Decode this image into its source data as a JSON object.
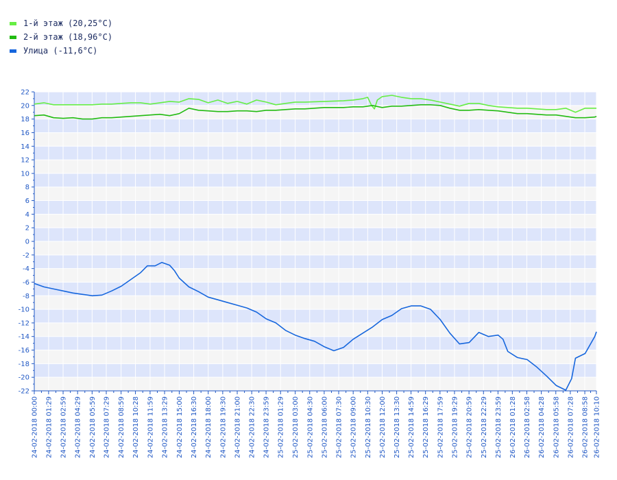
{
  "chart_data": {
    "type": "line",
    "ylim": [
      -22,
      22
    ],
    "yticks": [
      22,
      20,
      18,
      16,
      14,
      12,
      10,
      8,
      6,
      4,
      2,
      0,
      -2,
      -4,
      -6,
      -8,
      -10,
      -12,
      -14,
      -16,
      -18,
      -20,
      -22
    ],
    "xlim": [
      0,
      58.17
    ],
    "xticks": [
      {
        "h": 0,
        "label": "24-02-2018 00:00"
      },
      {
        "h": 1.483,
        "label": "24-02-2018 01:29"
      },
      {
        "h": 2.983,
        "label": "24-02-2018 02:59"
      },
      {
        "h": 4.483,
        "label": "24-02-2018 04:29"
      },
      {
        "h": 5.983,
        "label": "24-02-2018 05:59"
      },
      {
        "h": 7.45,
        "label": "24-02-2018 07:29"
      },
      {
        "h": 8.983,
        "label": "24-02-2018 08:59"
      },
      {
        "h": 10.467,
        "label": "24-02-2018 10:28"
      },
      {
        "h": 11.983,
        "label": "24-02-2018 11:59"
      },
      {
        "h": 13.483,
        "label": "24-02-2018 13:29"
      },
      {
        "h": 15.0,
        "label": "24-02-2018 15:00"
      },
      {
        "h": 16.5,
        "label": "24-02-2018 16:30"
      },
      {
        "h": 18.0,
        "label": "24-02-2018 18:00"
      },
      {
        "h": 19.5,
        "label": "24-02-2018 19:30"
      },
      {
        "h": 21.0,
        "label": "24-02-2018 21:00"
      },
      {
        "h": 22.5,
        "label": "24-02-2018 22:30"
      },
      {
        "h": 23.983,
        "label": "24-02-2018 23:59"
      },
      {
        "h": 25.483,
        "label": "25-02-2018 01:29"
      },
      {
        "h": 27.0,
        "label": "25-02-2018 03:00"
      },
      {
        "h": 28.5,
        "label": "25-02-2018 04:30"
      },
      {
        "h": 30.0,
        "label": "25-02-2018 06:00"
      },
      {
        "h": 31.5,
        "label": "25-02-2018 07:30"
      },
      {
        "h": 33.0,
        "label": "25-02-2018 09:00"
      },
      {
        "h": 34.5,
        "label": "25-02-2018 10:30"
      },
      {
        "h": 36.0,
        "label": "25-02-2018 12:00"
      },
      {
        "h": 37.5,
        "label": "25-02-2018 13:30"
      },
      {
        "h": 38.983,
        "label": "25-02-2018 14:59"
      },
      {
        "h": 40.483,
        "label": "25-02-2018 16:29"
      },
      {
        "h": 41.983,
        "label": "25-02-2018 17:59"
      },
      {
        "h": 43.483,
        "label": "25-02-2018 19:29"
      },
      {
        "h": 44.983,
        "label": "25-02-2018 20:59"
      },
      {
        "h": 46.483,
        "label": "25-02-2018 22:29"
      },
      {
        "h": 47.983,
        "label": "25-02-2018 23:59"
      },
      {
        "h": 49.467,
        "label": "26-02-2018 01:28"
      },
      {
        "h": 50.967,
        "label": "26-02-2018 02:58"
      },
      {
        "h": 52.467,
        "label": "26-02-2018 04:28"
      },
      {
        "h": 53.967,
        "label": "26-02-2018 05:58"
      },
      {
        "h": 55.467,
        "label": "26-02-2018 07:28"
      },
      {
        "h": 56.967,
        "label": "26-02-2018 08:58"
      },
      {
        "h": 58.167,
        "label": "26-02-2018 10:10"
      }
    ],
    "grid": true,
    "legend_position": "top-left",
    "series": [
      {
        "name": "1-й этаж (20,25°C)",
        "color": "#66ee44",
        "points": [
          [
            0,
            20.2
          ],
          [
            1,
            20.4
          ],
          [
            2,
            20.1
          ],
          [
            4,
            20.1
          ],
          [
            6,
            20.1
          ],
          [
            7,
            20.2
          ],
          [
            8,
            20.2
          ],
          [
            9,
            20.3
          ],
          [
            10,
            20.4
          ],
          [
            11,
            20.4
          ],
          [
            12,
            20.2
          ],
          [
            13,
            20.4
          ],
          [
            14,
            20.6
          ],
          [
            15,
            20.5
          ],
          [
            16,
            21.0
          ],
          [
            17,
            20.9
          ],
          [
            18,
            20.4
          ],
          [
            19,
            20.8
          ],
          [
            20,
            20.3
          ],
          [
            21,
            20.6
          ],
          [
            22,
            20.2
          ],
          [
            23,
            20.8
          ],
          [
            24,
            20.5
          ],
          [
            25,
            20.1
          ],
          [
            26,
            20.3
          ],
          [
            27,
            20.5
          ],
          [
            28,
            20.5
          ],
          [
            30,
            20.6
          ],
          [
            32,
            20.7
          ],
          [
            33,
            20.8
          ],
          [
            34,
            21.0
          ],
          [
            34.5,
            21.2
          ],
          [
            34.9,
            20.0
          ],
          [
            35.2,
            19.5
          ],
          [
            35.5,
            20.8
          ],
          [
            36,
            21.3
          ],
          [
            37,
            21.5
          ],
          [
            38,
            21.2
          ],
          [
            39,
            21.0
          ],
          [
            40,
            21.0
          ],
          [
            41,
            20.8
          ],
          [
            42,
            20.5
          ],
          [
            43,
            20.2
          ],
          [
            44,
            19.9
          ],
          [
            45,
            20.3
          ],
          [
            46,
            20.3
          ],
          [
            47,
            20.0
          ],
          [
            48,
            19.8
          ],
          [
            49,
            19.7
          ],
          [
            50,
            19.6
          ],
          [
            51,
            19.6
          ],
          [
            52,
            19.5
          ],
          [
            53,
            19.4
          ],
          [
            54,
            19.4
          ],
          [
            55,
            19.6
          ],
          [
            56,
            19.0
          ],
          [
            57,
            19.6
          ],
          [
            58,
            19.6
          ],
          [
            58.17,
            19.6
          ]
        ]
      },
      {
        "name": "2-й этаж (18,96°C)",
        "color": "#22bb11",
        "points": [
          [
            0,
            18.5
          ],
          [
            1,
            18.6
          ],
          [
            2,
            18.2
          ],
          [
            3,
            18.1
          ],
          [
            4,
            18.2
          ],
          [
            5,
            18.0
          ],
          [
            6,
            18.0
          ],
          [
            7,
            18.2
          ],
          [
            8,
            18.2
          ],
          [
            9,
            18.3
          ],
          [
            10,
            18.4
          ],
          [
            11,
            18.5
          ],
          [
            12,
            18.6
          ],
          [
            13,
            18.7
          ],
          [
            14,
            18.5
          ],
          [
            15,
            18.8
          ],
          [
            16,
            19.6
          ],
          [
            17,
            19.3
          ],
          [
            18,
            19.2
          ],
          [
            19,
            19.1
          ],
          [
            20,
            19.1
          ],
          [
            21,
            19.2
          ],
          [
            22,
            19.2
          ],
          [
            23,
            19.1
          ],
          [
            24,
            19.3
          ],
          [
            25,
            19.3
          ],
          [
            26,
            19.4
          ],
          [
            27,
            19.5
          ],
          [
            28,
            19.5
          ],
          [
            29,
            19.6
          ],
          [
            30,
            19.7
          ],
          [
            31,
            19.7
          ],
          [
            32,
            19.7
          ],
          [
            33,
            19.8
          ],
          [
            34,
            19.8
          ],
          [
            35,
            20.0
          ],
          [
            36,
            19.7
          ],
          [
            37,
            19.9
          ],
          [
            38,
            19.9
          ],
          [
            39,
            20.0
          ],
          [
            40,
            20.1
          ],
          [
            41,
            20.1
          ],
          [
            42,
            20.0
          ],
          [
            43,
            19.6
          ],
          [
            44,
            19.3
          ],
          [
            45,
            19.3
          ],
          [
            46,
            19.4
          ],
          [
            47,
            19.3
          ],
          [
            48,
            19.2
          ],
          [
            49,
            19.0
          ],
          [
            50,
            18.8
          ],
          [
            51,
            18.8
          ],
          [
            52,
            18.7
          ],
          [
            53,
            18.6
          ],
          [
            54,
            18.6
          ],
          [
            55,
            18.4
          ],
          [
            56,
            18.2
          ],
          [
            57,
            18.2
          ],
          [
            58,
            18.3
          ],
          [
            58.17,
            18.4
          ]
        ]
      },
      {
        "name": "Улица (-11,6°C)",
        "color": "#1666dd",
        "points": [
          [
            0,
            -6.2
          ],
          [
            1,
            -6.7
          ],
          [
            2,
            -7.0
          ],
          [
            3,
            -7.3
          ],
          [
            4,
            -7.6
          ],
          [
            5,
            -7.8
          ],
          [
            6,
            -8.0
          ],
          [
            7,
            -7.9
          ],
          [
            8,
            -7.3
          ],
          [
            9,
            -6.6
          ],
          [
            10,
            -5.6
          ],
          [
            11,
            -4.6
          ],
          [
            11.7,
            -3.6
          ],
          [
            12.5,
            -3.6
          ],
          [
            13.2,
            -3.1
          ],
          [
            14,
            -3.5
          ],
          [
            14.5,
            -4.3
          ],
          [
            15,
            -5.4
          ],
          [
            16,
            -6.7
          ],
          [
            17,
            -7.4
          ],
          [
            18,
            -8.2
          ],
          [
            19,
            -8.6
          ],
          [
            20,
            -9.0
          ],
          [
            21,
            -9.4
          ],
          [
            22,
            -9.8
          ],
          [
            23,
            -10.4
          ],
          [
            24,
            -11.4
          ],
          [
            25,
            -12.0
          ],
          [
            26,
            -13.1
          ],
          [
            27,
            -13.8
          ],
          [
            28,
            -14.3
          ],
          [
            29,
            -14.7
          ],
          [
            30,
            -15.5
          ],
          [
            31,
            -16.1
          ],
          [
            32,
            -15.6
          ],
          [
            33,
            -14.4
          ],
          [
            34,
            -13.5
          ],
          [
            35,
            -12.6
          ],
          [
            36,
            -11.5
          ],
          [
            37,
            -10.9
          ],
          [
            38,
            -9.9
          ],
          [
            39,
            -9.5
          ],
          [
            40,
            -9.5
          ],
          [
            41,
            -10.0
          ],
          [
            42,
            -11.5
          ],
          [
            43,
            -13.5
          ],
          [
            44,
            -15.1
          ],
          [
            45,
            -14.9
          ],
          [
            46,
            -13.4
          ],
          [
            47,
            -14.0
          ],
          [
            48,
            -13.8
          ],
          [
            48.5,
            -14.4
          ],
          [
            49,
            -16.2
          ],
          [
            50,
            -17.1
          ],
          [
            51,
            -17.4
          ],
          [
            52,
            -18.5
          ],
          [
            53,
            -19.8
          ],
          [
            54,
            -21.2
          ],
          [
            55,
            -21.9
          ],
          [
            55.6,
            -20.2
          ],
          [
            56,
            -17.2
          ],
          [
            57,
            -16.5
          ],
          [
            58,
            -14.0
          ],
          [
            58.17,
            -13.3
          ]
        ]
      }
    ]
  }
}
